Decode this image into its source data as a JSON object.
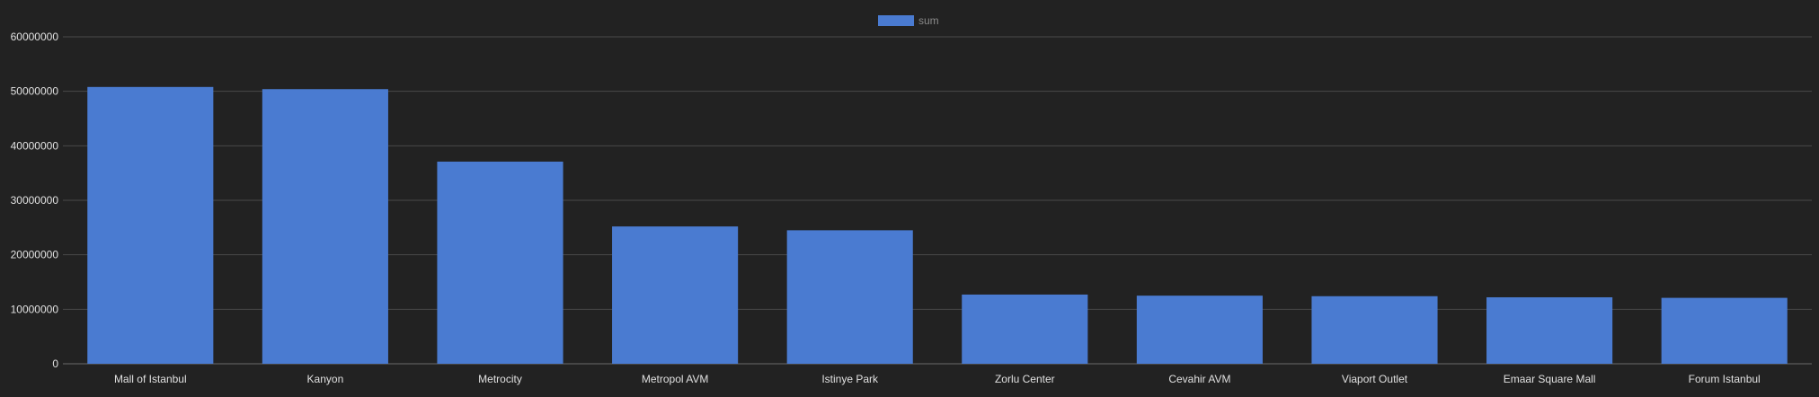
{
  "chart_data": {
    "type": "bar",
    "categories": [
      "Mall of Istanbul",
      "Kanyon",
      "Metrocity",
      "Metropol AVM",
      "Istinye Park",
      "Zorlu Center",
      "Cevahir AVM",
      "Viaport Outlet",
      "Emaar Square Mall",
      "Forum Istanbul"
    ],
    "series": [
      {
        "name": "sum",
        "values": [
          50800000,
          50400000,
          37100000,
          25200000,
          24500000,
          12700000,
          12500000,
          12400000,
          12200000,
          12100000
        ]
      }
    ],
    "title": "",
    "xlabel": "",
    "ylabel": "",
    "ylim": [
      0,
      60000000
    ],
    "yticks": [
      "0",
      "10000000",
      "20000000",
      "30000000",
      "40000000",
      "50000000",
      "60000000"
    ],
    "grid": true,
    "legend_position": "top-center",
    "colors": {
      "background": "#222222",
      "bar": "#4a7bd1",
      "grid": "#4a4a4a",
      "axis": "#6a6a6a",
      "tick_text": "#e0e0e0",
      "legend_text": "#8a8a8a"
    }
  }
}
